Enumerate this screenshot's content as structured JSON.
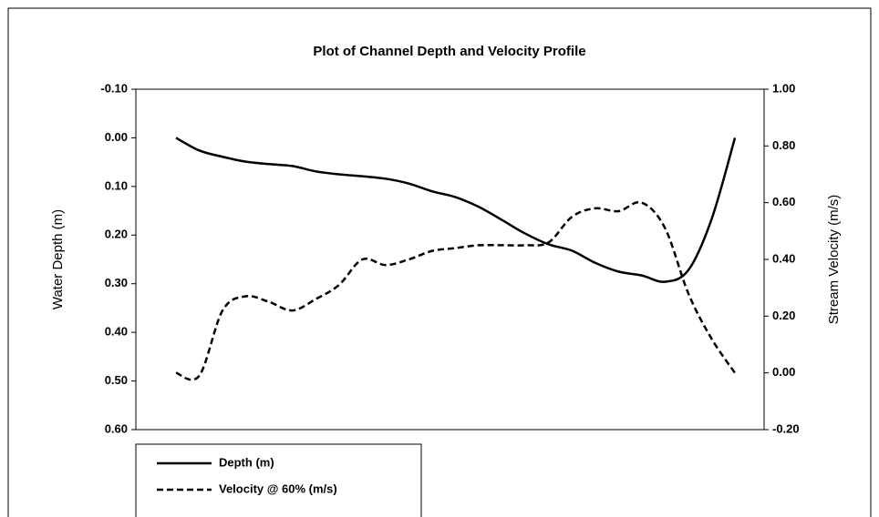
{
  "chart_data": {
    "type": "line",
    "title": "Plot of Channel Depth and Velocity Profile",
    "y_label": "Water Depth (m)",
    "y2_label": "Stream Velocity  (m/s)",
    "categories": [
      null,
      null,
      null,
      null,
      null,
      null,
      null,
      null,
      null,
      null,
      null,
      null,
      null,
      null,
      null,
      null,
      null,
      null,
      null,
      null,
      null,
      null,
      null,
      null,
      null
    ],
    "ylim": [
      -0.1,
      0.6
    ],
    "y_reversed": true,
    "yticks": [
      {
        "value": -0.1,
        "label": "-0.10"
      },
      {
        "value": 0,
        "label": "0.00"
      },
      {
        "value": 0.1,
        "label": "0.10"
      },
      {
        "value": 0.2,
        "label": "0.20"
      },
      {
        "value": 0.3,
        "label": "0.30"
      },
      {
        "value": 0.4,
        "label": "0.40"
      },
      {
        "value": 0.5,
        "label": "0.50"
      },
      {
        "value": 0.6,
        "label": "0.60"
      }
    ],
    "y2lim": [
      -0.2,
      1.0
    ],
    "y2ticks": [
      {
        "value": -0.2,
        "label": "-0.20"
      },
      {
        "value": 0,
        "label": "0.00"
      },
      {
        "value": 0.2,
        "label": "0.20"
      },
      {
        "value": 0.4,
        "label": "0.40"
      },
      {
        "value": 0.6,
        "label": "0.60"
      },
      {
        "value": 0.8,
        "label": "0.80"
      },
      {
        "value": 1.0,
        "label": "1.00"
      }
    ],
    "grid": false,
    "legend": "bottom-left",
    "series": [
      {
        "name": "Depth (m)",
        "color": "#000000",
        "dash": "solid",
        "values": [
          0.0,
          0.026,
          0.039,
          0.049,
          0.054,
          0.058,
          0.069,
          0.075,
          0.079,
          0.084,
          0.094,
          0.11,
          0.122,
          0.142,
          0.169,
          0.197,
          0.219,
          0.232,
          0.257,
          0.275,
          0.283,
          0.296,
          0.272,
          0.167,
          0.0
        ]
      },
      {
        "name": "Velocity @ 60% (m/s)",
        "color": "#000000",
        "dash": "dashed",
        "axis": "y2",
        "values": [
          0.0,
          -0.01,
          0.22,
          0.27,
          0.25,
          0.22,
          0.26,
          0.31,
          0.4,
          0.38,
          0.4,
          0.43,
          0.44,
          0.45,
          0.45,
          0.45,
          0.46,
          0.55,
          0.58,
          0.57,
          0.6,
          0.51,
          0.28,
          0.12,
          0.0
        ]
      }
    ]
  }
}
